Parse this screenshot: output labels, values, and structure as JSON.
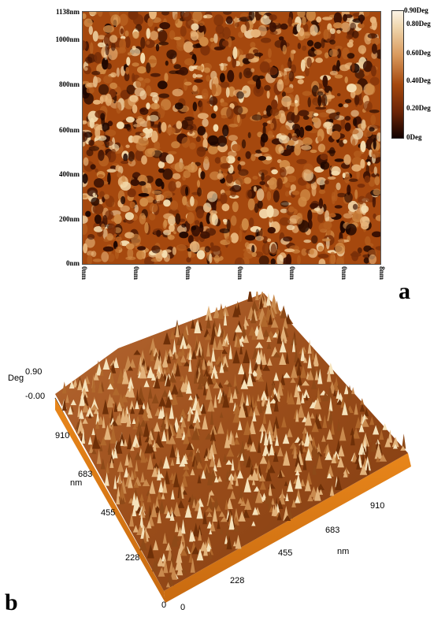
{
  "panel_a": {
    "letter": "a",
    "y_ticks": [
      "1138nm",
      "1000nm",
      "800nm",
      "600nm",
      "400nm",
      "200nm",
      "0nm"
    ],
    "y_values": [
      1138,
      1000,
      800,
      600,
      400,
      200,
      0
    ],
    "x_ticks": [
      "0nm",
      "0nm",
      "0nm",
      "0nm",
      "0nm",
      "0nm",
      "8nm"
    ],
    "colorbar_labels": [
      "0.90Deg",
      "0.80Deg",
      "0.60Deg",
      "0.40Deg",
      "0.20Deg",
      "0Deg"
    ],
    "colorbar_values": [
      0.9,
      0.8,
      0.6,
      0.4,
      0.2,
      0
    ],
    "colors": {
      "dark": "#2a0a00",
      "mid": "#a5480e",
      "light": "#f4dcae"
    }
  },
  "panel_b": {
    "letter": "b",
    "z_label": "Deg",
    "z_ticks": [
      "0.90",
      "-0.00"
    ],
    "left_axis_ticks": [
      "910",
      "683",
      "455",
      "228",
      "0"
    ],
    "left_axis_unit": "nm",
    "bottom_axis_ticks": [
      "0",
      "228",
      "455",
      "683",
      "910"
    ],
    "bottom_axis_unit": "nm",
    "colors": {
      "peak": "#f5e2bb",
      "base": "#8a3c0c",
      "edge": "#e07a16"
    }
  }
}
